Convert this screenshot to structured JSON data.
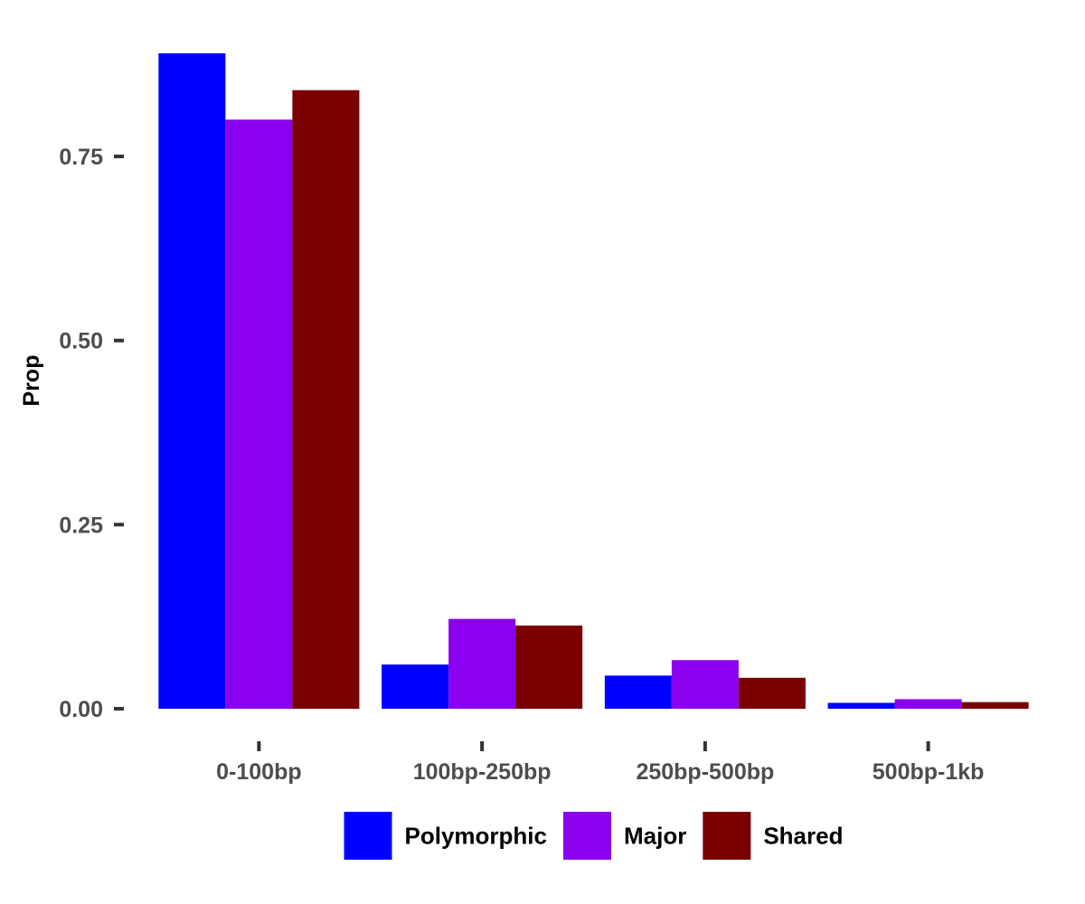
{
  "chart_data": {
    "type": "bar",
    "categories": [
      "0-100bp",
      "100bp-250bp",
      "250bp-500bp",
      "500bp-1kb"
    ],
    "series": [
      {
        "name": "Polymorphic",
        "color": "#0000FF",
        "values": [
          0.89,
          0.06,
          0.045,
          0.008
        ]
      },
      {
        "name": "Major",
        "color": "#8B00EE",
        "values": [
          0.8,
          0.122,
          0.066,
          0.013
        ]
      },
      {
        "name": "Shared",
        "color": "#7A0000",
        "values": [
          0.84,
          0.113,
          0.042,
          0.009
        ]
      }
    ],
    "title": "",
    "xlabel": "",
    "ylabel": "Prop",
    "ylim": [
      0,
      0.89
    ],
    "yticks": [
      0.0,
      0.25,
      0.5,
      0.75
    ],
    "ytick_labels": [
      "0.00",
      "0.25",
      "0.50",
      "0.75"
    ],
    "grid": false,
    "legend_position": "bottom"
  }
}
